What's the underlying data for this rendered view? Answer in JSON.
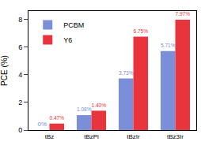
{
  "chart_data": {
    "type": "bar",
    "categories": [
      "tBz",
      "tBzPi",
      "tBzIr",
      "tBz3Ir"
    ],
    "y_label": "PCE (%)",
    "series": [
      {
        "name": "PCBM",
        "color": "#7b8fd8",
        "values": [
          0,
          1.08,
          3.73,
          5.71
        ],
        "value_labels": [
          "0%",
          "1.08%",
          "3.73%",
          "5.71%"
        ]
      },
      {
        "name": "Y6",
        "color": "#e8343c",
        "values": [
          0.47,
          1.4,
          6.75,
          7.97
        ],
        "value_labels": [
          "0.47%",
          "1.40%",
          "6.75%",
          "7.97%"
        ]
      }
    ],
    "ylim": [
      0,
      8.6
    ],
    "yticks": [
      0,
      2,
      4,
      6,
      8
    ],
    "grid": false,
    "legend": "upper left",
    "data_labels": true
  }
}
